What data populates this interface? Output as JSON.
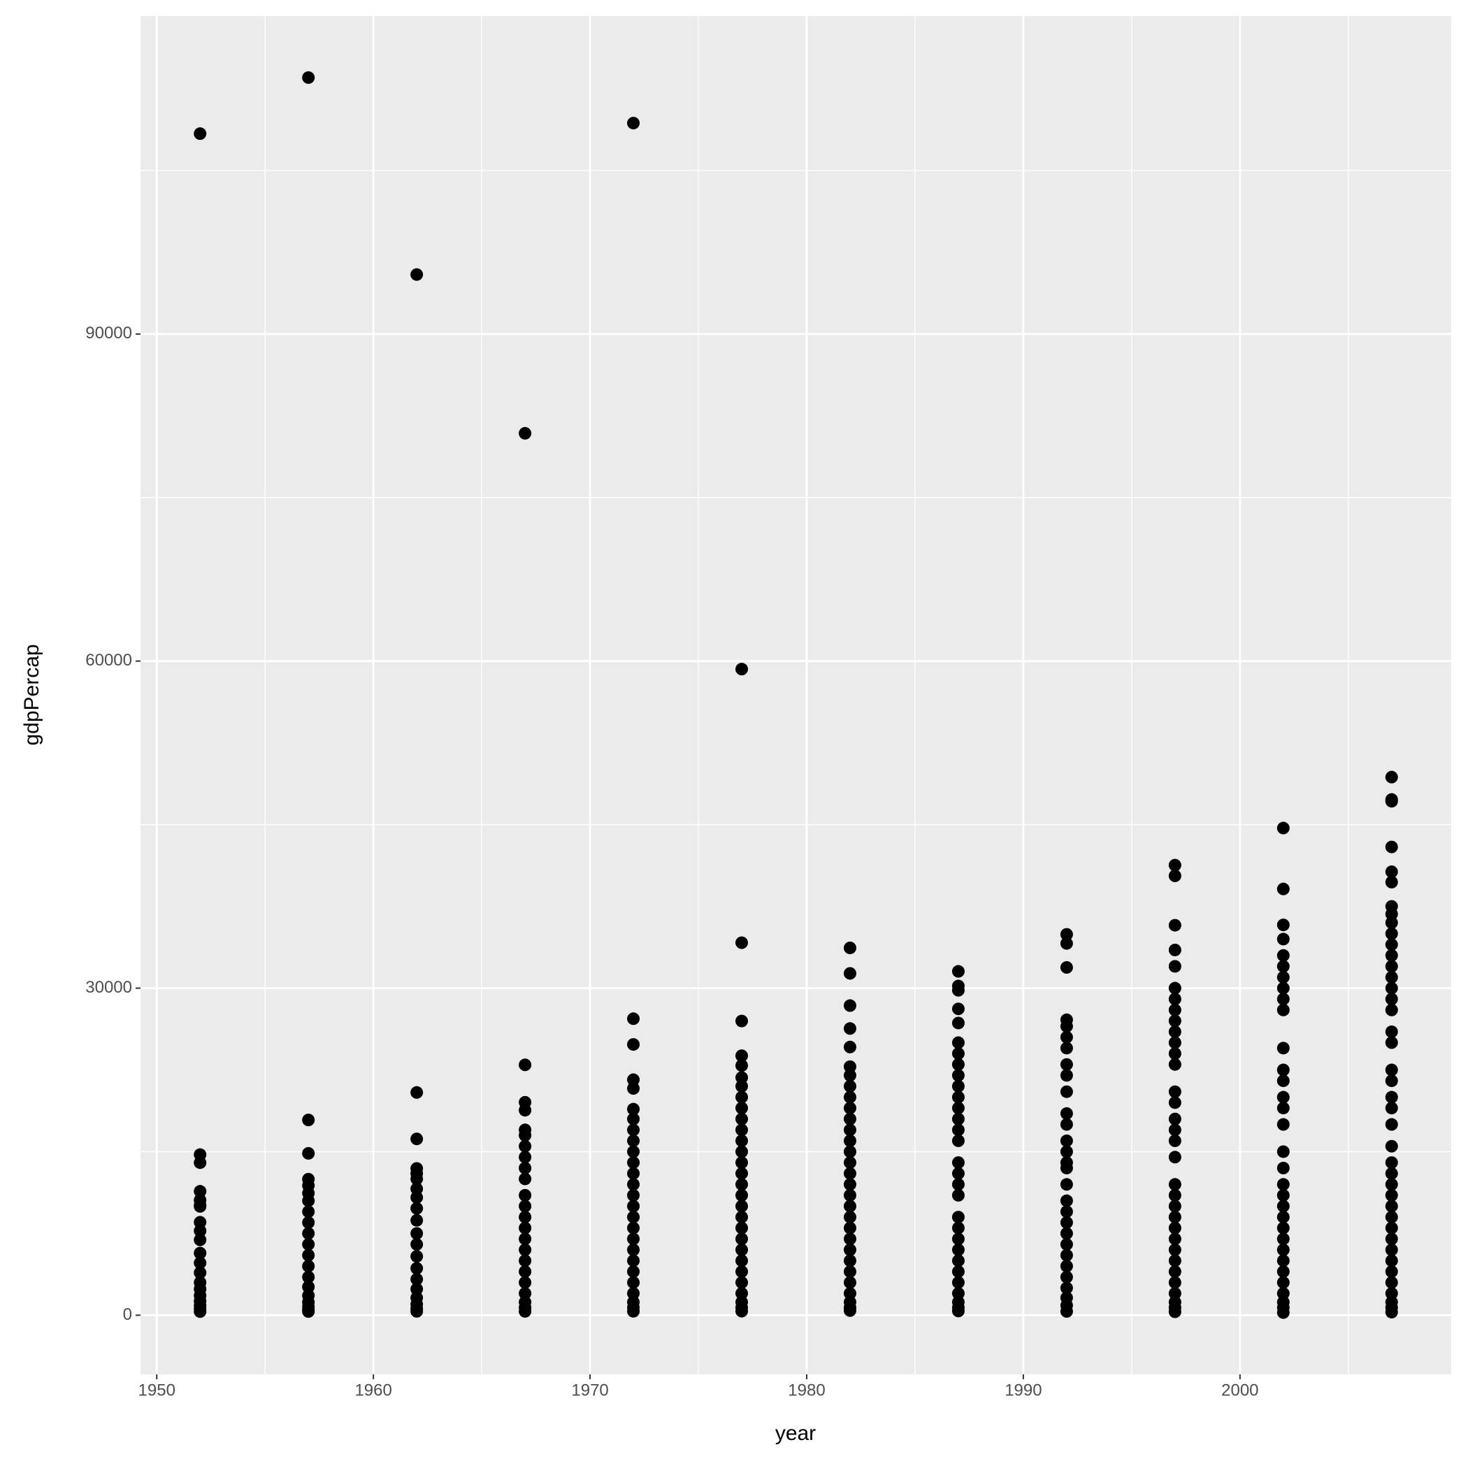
{
  "chart_data": {
    "type": "scatter",
    "x_label": "year",
    "y_label": "gdpPercap",
    "color": "#000000",
    "grid": true,
    "xlim": [
      1949.25,
      2009.75
    ],
    "xticks": [
      1950,
      1960,
      1970,
      1980,
      1990,
      2000
    ],
    "ylim": [
      -5423,
      119164
    ],
    "yticks": [
      0,
      30000,
      60000,
      90000
    ],
    "x": [
      1952,
      1952,
      1952,
      1952,
      1952,
      1952,
      1952,
      1952,
      1952,
      1952,
      1952,
      1952,
      1952,
      1952,
      1952,
      1952,
      1952,
      1952,
      1952,
      1952,
      1957,
      1957,
      1957,
      1957,
      1957,
      1957,
      1957,
      1957,
      1957,
      1957,
      1957,
      1957,
      1957,
      1957,
      1957,
      1957,
      1957,
      1957,
      1957,
      1957,
      1962,
      1962,
      1962,
      1962,
      1962,
      1962,
      1962,
      1962,
      1962,
      1962,
      1962,
      1962,
      1962,
      1962,
      1962,
      1962,
      1962,
      1962,
      1962,
      1962,
      1967,
      1967,
      1967,
      1967,
      1967,
      1967,
      1967,
      1967,
      1967,
      1967,
      1967,
      1967,
      1967,
      1967,
      1967,
      1967,
      1967,
      1967,
      1967,
      1967,
      1967,
      1967,
      1967,
      1972,
      1972,
      1972,
      1972,
      1972,
      1972,
      1972,
      1972,
      1972,
      1972,
      1972,
      1972,
      1972,
      1972,
      1972,
      1972,
      1972,
      1972,
      1972,
      1972,
      1972,
      1972,
      1972,
      1972,
      1972,
      1972,
      1977,
      1977,
      1977,
      1977,
      1977,
      1977,
      1977,
      1977,
      1977,
      1977,
      1977,
      1977,
      1977,
      1977,
      1977,
      1977,
      1977,
      1977,
      1977,
      1977,
      1977,
      1977,
      1977,
      1977,
      1977,
      1977,
      1977,
      1977,
      1977,
      1982,
      1982,
      1982,
      1982,
      1982,
      1982,
      1982,
      1982,
      1982,
      1982,
      1982,
      1982,
      1982,
      1982,
      1982,
      1982,
      1982,
      1982,
      1982,
      1982,
      1982,
      1982,
      1982,
      1982,
      1982,
      1982,
      1982,
      1982,
      1982,
      1982,
      1987,
      1987,
      1987,
      1987,
      1987,
      1987,
      1987,
      1987,
      1987,
      1987,
      1987,
      1987,
      1987,
      1987,
      1987,
      1987,
      1987,
      1987,
      1987,
      1987,
      1987,
      1987,
      1987,
      1987,
      1987,
      1987,
      1987,
      1987,
      1987,
      1987,
      1992,
      1992,
      1992,
      1992,
      1992,
      1992,
      1992,
      1992,
      1992,
      1992,
      1992,
      1992,
      1992,
      1992,
      1992,
      1992,
      1992,
      1992,
      1992,
      1992,
      1992,
      1992,
      1992,
      1992,
      1992,
      1992,
      1992,
      1992,
      1992,
      1997,
      1997,
      1997,
      1997,
      1997,
      1997,
      1997,
      1997,
      1997,
      1997,
      1997,
      1997,
      1997,
      1997,
      1997,
      1997,
      1997,
      1997,
      1997,
      1997,
      1997,
      1997,
      1997,
      1997,
      1997,
      1997,
      1997,
      1997,
      1997,
      1997,
      1997,
      1997,
      1997,
      2002,
      2002,
      2002,
      2002,
      2002,
      2002,
      2002,
      2002,
      2002,
      2002,
      2002,
      2002,
      2002,
      2002,
      2002,
      2002,
      2002,
      2002,
      2002,
      2002,
      2002,
      2002,
      2002,
      2002,
      2002,
      2002,
      2002,
      2002,
      2002,
      2002,
      2002,
      2002,
      2007,
      2007,
      2007,
      2007,
      2007,
      2007,
      2007,
      2007,
      2007,
      2007,
      2007,
      2007,
      2007,
      2007,
      2007,
      2007,
      2007,
      2007,
      2007,
      2007,
      2007,
      2007,
      2007,
      2007,
      2007,
      2007,
      2007,
      2007,
      2007,
      2007,
      2007,
      2007,
      2007,
      2007,
      2007,
      2007,
      2007,
      2007,
      2007,
      2007,
      2007
    ],
    "values": [
      108382,
      14734,
      13990,
      11367,
      10556,
      10095,
      9980,
      8528,
      7739,
      6910,
      5700,
      4800,
      3900,
      3000,
      2400,
      1800,
      1300,
      900,
      600,
      331,
      113523,
      17909,
      14847,
      12477,
      11900,
      11200,
      10500,
      9500,
      8500,
      7500,
      6500,
      5500,
      4500,
      3500,
      2600,
      1800,
      1200,
      800,
      500,
      336,
      95458,
      20431,
      16173,
      13462,
      13000,
      12500,
      11600,
      10800,
      9800,
      8700,
      7500,
      6500,
      5400,
      4300,
      3300,
      2400,
      1600,
      1000,
      600,
      355,
      80895,
      22966,
      19530,
      18800,
      17000,
      16500,
      15500,
      14500,
      13500,
      12500,
      11000,
      10000,
      9000,
      8000,
      7000,
      6000,
      5000,
      4000,
      3000,
      2000,
      1200,
      700,
      350,
      109348,
      27195,
      24837,
      21600,
      20800,
      18900,
      18000,
      17000,
      16000,
      15000,
      14000,
      13000,
      12000,
      11000,
      10000,
      9000,
      8000,
      7000,
      6000,
      5000,
      4000,
      3000,
      2000,
      1200,
      700,
      357,
      59265,
      34167,
      26983,
      23800,
      22900,
      21800,
      21000,
      20000,
      19000,
      18000,
      17000,
      16000,
      15000,
      14000,
      13000,
      12000,
      11000,
      10000,
      9000,
      8000,
      7000,
      6000,
      5000,
      4000,
      3000,
      2000,
      1200,
      700,
      371,
      33693,
      31354,
      28398,
      26300,
      24600,
      22800,
      22000,
      21000,
      20000,
      19000,
      18000,
      17000,
      16000,
      15000,
      14000,
      13000,
      12000,
      11000,
      10000,
      9000,
      8000,
      7000,
      6000,
      5000,
      4000,
      3000,
      2000,
      1200,
      700,
      424,
      31541,
      30200,
      29800,
      28100,
      26800,
      25000,
      24000,
      23000,
      22000,
      21000,
      20000,
      19000,
      18000,
      17000,
      16000,
      14000,
      13000,
      12000,
      11000,
      9000,
      8000,
      7000,
      6000,
      5000,
      4000,
      3000,
      2000,
      1200,
      700,
      385,
      34933,
      34100,
      31900,
      27100,
      26500,
      25500,
      24500,
      23000,
      22000,
      20500,
      18500,
      17500,
      16000,
      15000,
      14000,
      13500,
      12000,
      10500,
      9500,
      8500,
      7500,
      6500,
      5500,
      4500,
      3500,
      2500,
      1600,
      900,
      347,
      41283,
      40300,
      35767,
      33500,
      32000,
      30000,
      29000,
      28000,
      27000,
      26000,
      25000,
      24000,
      23000,
      20500,
      19500,
      18000,
      17000,
      16000,
      14500,
      12000,
      11000,
      10000,
      9000,
      8000,
      7000,
      6000,
      5000,
      4000,
      3000,
      2000,
      1200,
      700,
      312,
      44684,
      39097,
      35800,
      34500,
      33000,
      32000,
      31000,
      30000,
      29000,
      28000,
      24500,
      22500,
      21500,
      20000,
      19000,
      17500,
      15000,
      13500,
      12000,
      11000,
      10000,
      9000,
      8000,
      7000,
      6000,
      5000,
      4000,
      3000,
      2000,
      1200,
      700,
      241,
      49357,
      47307,
      47143,
      42952,
      40676,
      39725,
      37500,
      36800,
      36000,
      35000,
      34000,
      33000,
      32000,
      31000,
      30000,
      29000,
      28000,
      26000,
      25000,
      22500,
      21500,
      20000,
      19000,
      17500,
      15500,
      14000,
      13000,
      12000,
      11000,
      10000,
      9000,
      8000,
      7000,
      6000,
      5000,
      4000,
      3000,
      2000,
      1200,
      700,
      278
    ]
  }
}
